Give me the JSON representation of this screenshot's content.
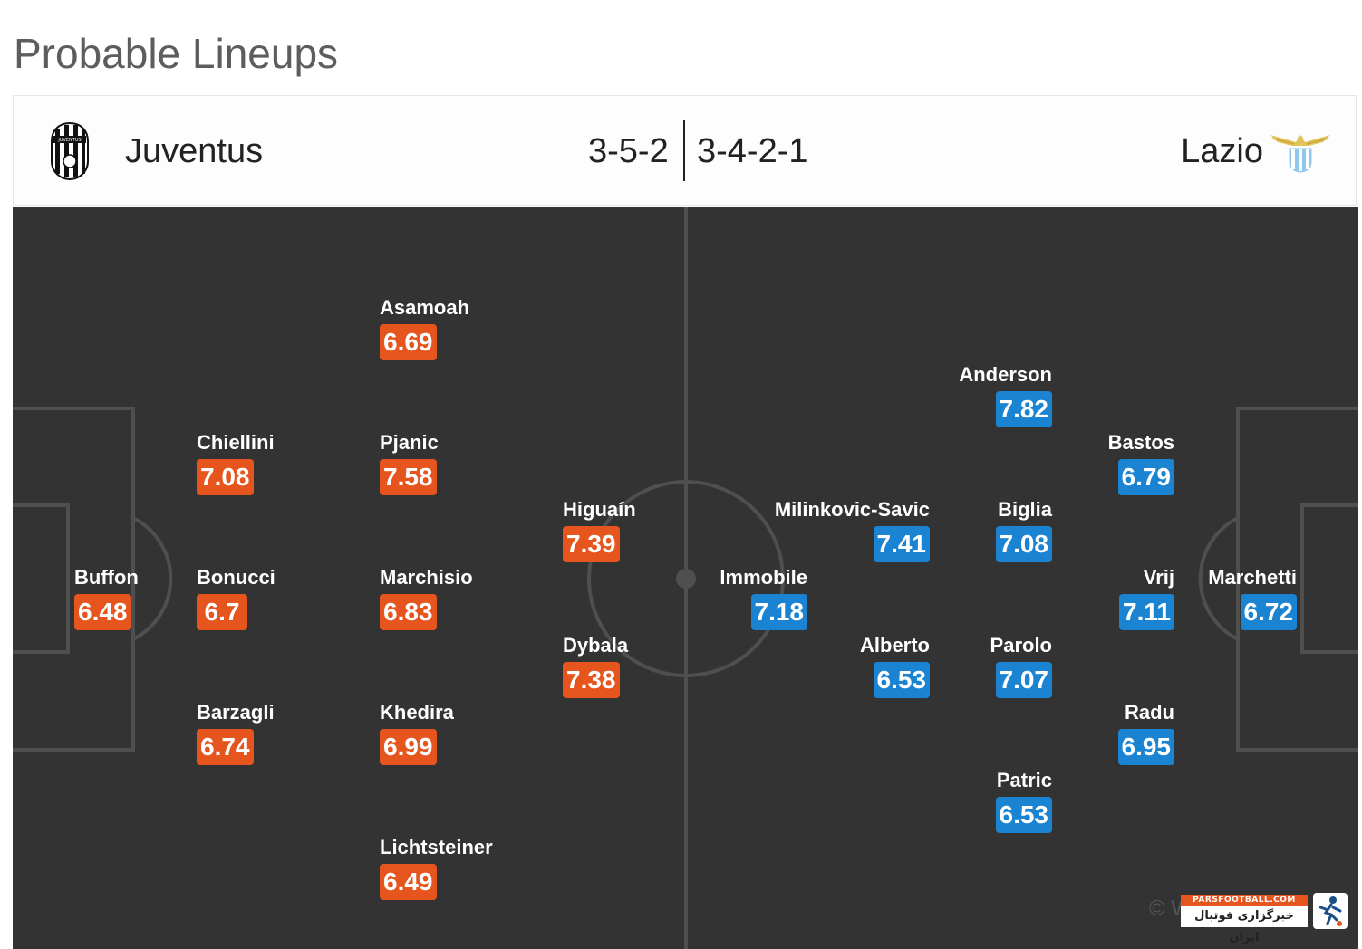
{
  "page": {
    "title": "Probable Lineups"
  },
  "match": {
    "home": {
      "name": "Juventus",
      "formation": "3-5-2",
      "crest_icon": "juventus-crest-icon"
    },
    "away": {
      "name": "Lazio",
      "formation": "3-4-2-1",
      "crest_icon": "lazio-crest-icon"
    }
  },
  "colors": {
    "home_rating_bg": "#e5551d",
    "away_rating_bg": "#1a84d3",
    "pitch_bg": "#333333",
    "pitch_lines": "#555555"
  },
  "players": {
    "home": [
      {
        "name": "Buffon",
        "rating": "6.48"
      },
      {
        "name": "Chiellini",
        "rating": "7.08"
      },
      {
        "name": "Bonucci",
        "rating": "6.7"
      },
      {
        "name": "Barzagli",
        "rating": "6.74"
      },
      {
        "name": "Asamoah",
        "rating": "6.69"
      },
      {
        "name": "Pjanic",
        "rating": "7.58"
      },
      {
        "name": "Marchisio",
        "rating": "6.83"
      },
      {
        "name": "Khedira",
        "rating": "6.99"
      },
      {
        "name": "Lichtsteiner",
        "rating": "6.49"
      },
      {
        "name": "Higuaín",
        "rating": "7.39"
      },
      {
        "name": "Dybala",
        "rating": "7.38"
      }
    ],
    "away": [
      {
        "name": "Marchetti",
        "rating": "6.72"
      },
      {
        "name": "Bastos",
        "rating": "6.79"
      },
      {
        "name": "Vrij",
        "rating": "7.11"
      },
      {
        "name": "Radu",
        "rating": "6.95"
      },
      {
        "name": "Anderson",
        "rating": "7.82"
      },
      {
        "name": "Biglia",
        "rating": "7.08"
      },
      {
        "name": "Parolo",
        "rating": "7.07"
      },
      {
        "name": "Patric",
        "rating": "6.53"
      },
      {
        "name": "Milinkovic-Savic",
        "rating": "7.41"
      },
      {
        "name": "Alberto",
        "rating": "6.53"
      },
      {
        "name": "Immobile",
        "rating": "7.18"
      }
    ]
  },
  "footer": {
    "copyright": "© W",
    "watermark_top": "PARSFOOTBALL.COM",
    "watermark_bottom": "خبرگزاری فوتبال ایران"
  }
}
